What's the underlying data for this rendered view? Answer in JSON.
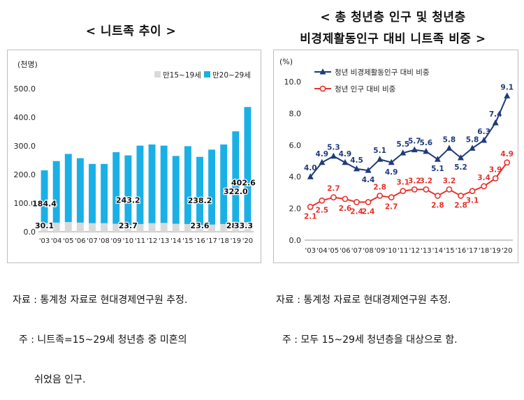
{
  "left_title": "< 니트족 추이 >",
  "right_title_line1": "< 총 청년층 인구 및 청년층",
  "right_title_line2": "비경제활동인구 대비 니트족 비중 >",
  "left_notes": [
    "자료 : 통계청 자료로 현대경제연구원 추정.",
    "  주 : 니트족=15~29세 청년층 중 미혼의",
    "       쉬었음 인구."
  ],
  "right_notes": [
    "자료 : 통계청 자료로 현대경제연구원 추정.",
    "  주 : 모두 15~29세 청년층을 대상으로 함."
  ],
  "colors": {
    "bar_young": "#d9d9d9",
    "bar_old": "#1ab0e6",
    "line_navy": "#1f3b7a",
    "line_red": "#e8312a"
  },
  "chart_data": [
    {
      "type": "bar",
      "unit_label": "(천명)",
      "categories": [
        "'03",
        "'04",
        "'05",
        "'06",
        "'07",
        "'08",
        "'09",
        "'10",
        "'11",
        "'12",
        "'13",
        "'14",
        "'15",
        "'16",
        "'17",
        "'18",
        "'19",
        "'20"
      ],
      "ylim": [
        0,
        500
      ],
      "yticks": [
        "0.0",
        "100.0",
        "200.0",
        "300.0",
        "400.0",
        "500.0"
      ],
      "stacked": true,
      "legend_position": "top-right",
      "series": [
        {
          "name": "만15~19세",
          "values": [
            30.1,
            32,
            34,
            32,
            30,
            30,
            28,
            23.7,
            27,
            30,
            31,
            28,
            27,
            23.6,
            25,
            27,
            28.9,
            33.3
          ]
        },
        {
          "name": "만20~29세",
          "values": [
            184.4,
            215,
            238,
            225,
            207,
            207,
            250,
            243.2,
            274,
            275,
            270,
            237,
            272,
            238.2,
            262,
            278,
            322.0,
            402.6
          ]
        }
      ],
      "data_labels": [
        {
          "series": 1,
          "index": 0,
          "text": "184.4"
        },
        {
          "series": 0,
          "index": 0,
          "text": "30.1"
        },
        {
          "series": 1,
          "index": 7,
          "text": "243.2"
        },
        {
          "series": 0,
          "index": 7,
          "text": "23.7"
        },
        {
          "series": 1,
          "index": 13,
          "text": "238.2"
        },
        {
          "series": 0,
          "index": 13,
          "text": "23.6"
        },
        {
          "series": 1,
          "index": 16,
          "text": "322.0"
        },
        {
          "series": 0,
          "index": 16,
          "text": "28.9"
        },
        {
          "series": 1,
          "index": 17,
          "text": "402.6"
        },
        {
          "series": 0,
          "index": 17,
          "text": "33.3"
        }
      ]
    },
    {
      "type": "line",
      "unit_label": "(%)",
      "categories": [
        "'03",
        "'04",
        "'05",
        "'06",
        "'07",
        "'08",
        "'09",
        "'10",
        "'11",
        "'12",
        "'13",
        "'14",
        "'15",
        "'16",
        "'17",
        "'18",
        "'19",
        "'20"
      ],
      "ylim": [
        0,
        10
      ],
      "yticks": [
        "0.0",
        "2.0",
        "4.0",
        "6.0",
        "8.0",
        "10.0"
      ],
      "legend_position": "top-left",
      "series": [
        {
          "name": "청년 비경제활동인구 대비 비중",
          "values": [
            4.0,
            4.9,
            5.3,
            4.9,
            4.5,
            4.4,
            5.1,
            4.9,
            5.5,
            5.7,
            5.6,
            5.1,
            5.8,
            5.2,
            5.8,
            6.3,
            7.4,
            9.1
          ]
        },
        {
          "name": "청년 인구 대비 비중",
          "values": [
            2.1,
            2.5,
            2.7,
            2.6,
            2.4,
            2.4,
            2.8,
            2.7,
            3.1,
            3.2,
            3.2,
            2.8,
            3.2,
            2.8,
            3.1,
            3.4,
            3.9,
            4.9
          ]
        }
      ]
    }
  ]
}
